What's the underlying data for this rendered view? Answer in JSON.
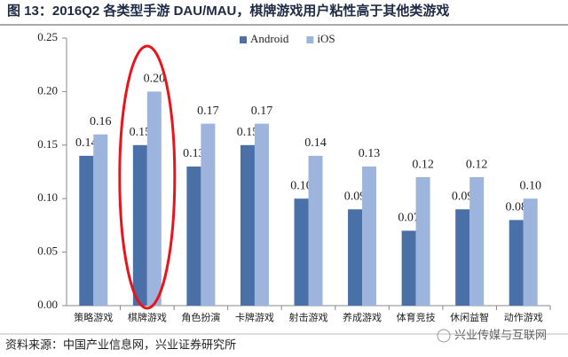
{
  "chart_data": {
    "type": "bar",
    "title": "图 13：2016Q2 各类型手游 DAU/MAU，棋牌游戏用户粘性高于其他类游戏",
    "categories": [
      "策略游戏",
      "棋牌游戏",
      "角色扮演",
      "卡牌游戏",
      "射击游戏",
      "养成游戏",
      "体育竞技",
      "休闲益智",
      "动作游戏"
    ],
    "series": [
      {
        "name": "Android",
        "color": "#4a70a8",
        "values": [
          0.14,
          0.15,
          0.13,
          0.15,
          0.1,
          0.09,
          0.07,
          0.09,
          0.08
        ],
        "value_labels": [
          "0.14",
          "0.15",
          "0.13",
          "0.15",
          "0.10",
          "0.09",
          "0.07",
          "0.09",
          "0.08"
        ]
      },
      {
        "name": "iOS",
        "color": "#9db4dc",
        "values": [
          0.16,
          0.2,
          0.17,
          0.17,
          0.14,
          0.13,
          0.12,
          0.12,
          0.1
        ],
        "value_labels": [
          "0.16",
          "0.20",
          "0.17",
          "0.17",
          "0.14",
          "0.13",
          "0.12",
          "0.12",
          "0.10"
        ]
      }
    ],
    "ylim": [
      0,
      0.25
    ],
    "yticks": [
      {
        "value": 0,
        "label": "0.00"
      },
      0.05,
      {
        "value": 0.1,
        "label": "0.10"
      },
      0.15,
      {
        "value": 0.2,
        "label": "0.20"
      },
      0.25
    ],
    "grid": false,
    "legend": "top",
    "source": "资料来源：中国产业信息网，兴业证券研究所",
    "watermark": "兴业传媒与互联网"
  }
}
